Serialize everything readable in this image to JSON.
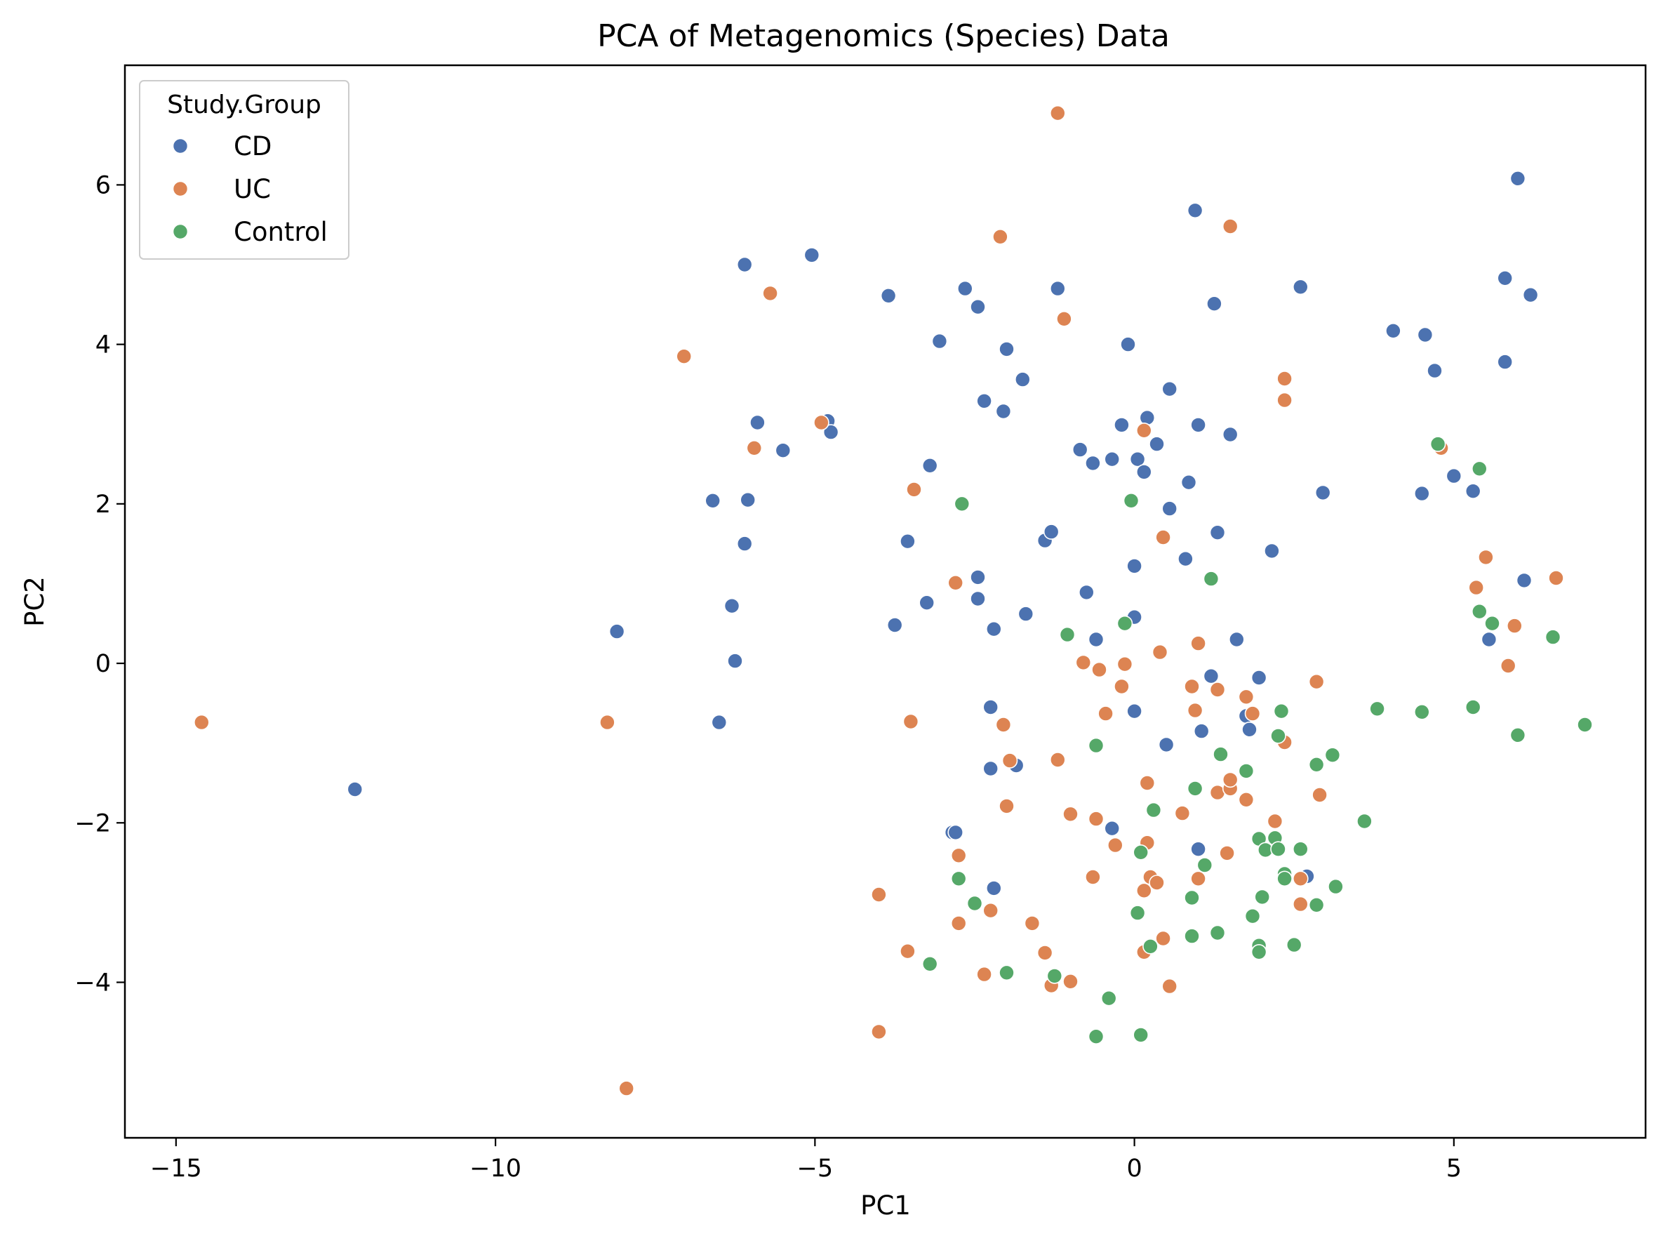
{
  "chart_data": {
    "type": "scatter",
    "title": "PCA of Metagenomics (Species) Data",
    "xlabel": "PC1",
    "ylabel": "PC2",
    "xlim": [
      -15.8,
      8.0
    ],
    "ylim": [
      -5.95,
      7.5
    ],
    "xticks": [
      -15,
      -10,
      -5,
      0,
      5
    ],
    "yticks": [
      -4,
      -2,
      0,
      2,
      4,
      6
    ],
    "grid": false,
    "legend": {
      "title": "Study.Group",
      "position": "top-left"
    },
    "series": [
      {
        "name": "CD",
        "color": "#4c72b0",
        "points": [
          [
            -12.2,
            -1.58
          ],
          [
            -8.1,
            0.4
          ],
          [
            -6.6,
            2.04
          ],
          [
            -6.5,
            -0.74
          ],
          [
            -6.3,
            0.72
          ],
          [
            -6.25,
            0.03
          ],
          [
            -6.1,
            5.0
          ],
          [
            -6.1,
            1.5
          ],
          [
            -6.05,
            2.05
          ],
          [
            -5.9,
            3.02
          ],
          [
            -5.5,
            2.67
          ],
          [
            -5.05,
            5.12
          ],
          [
            -4.8,
            3.04
          ],
          [
            -4.75,
            2.9
          ],
          [
            -3.85,
            4.61
          ],
          [
            -3.75,
            0.48
          ],
          [
            -3.55,
            1.53
          ],
          [
            -3.25,
            0.76
          ],
          [
            -3.2,
            2.48
          ],
          [
            -3.05,
            4.04
          ],
          [
            -2.85,
            -2.12
          ],
          [
            -2.8,
            -2.12
          ],
          [
            -2.65,
            4.7
          ],
          [
            -2.45,
            4.47
          ],
          [
            -2.45,
            1.08
          ],
          [
            -2.45,
            0.81
          ],
          [
            -2.35,
            3.29
          ],
          [
            -2.25,
            -0.55
          ],
          [
            -2.25,
            -1.32
          ],
          [
            -2.2,
            -2.82
          ],
          [
            -2.2,
            0.43
          ],
          [
            -2.05,
            3.16
          ],
          [
            -2.0,
            3.94
          ],
          [
            -1.85,
            -1.28
          ],
          [
            -1.75,
            3.56
          ],
          [
            -1.7,
            0.62
          ],
          [
            -1.4,
            1.54
          ],
          [
            -1.3,
            1.65
          ],
          [
            -1.2,
            4.7
          ],
          [
            -0.85,
            2.68
          ],
          [
            -0.75,
            0.89
          ],
          [
            -0.65,
            2.51
          ],
          [
            -0.6,
            0.3
          ],
          [
            -0.35,
            2.56
          ],
          [
            -0.35,
            -2.07
          ],
          [
            -0.2,
            2.99
          ],
          [
            -0.1,
            4.0
          ],
          [
            0.0,
            1.22
          ],
          [
            0.0,
            0.58
          ],
          [
            0.0,
            -0.6
          ],
          [
            0.05,
            2.56
          ],
          [
            0.15,
            2.4
          ],
          [
            0.2,
            3.08
          ],
          [
            0.35,
            2.75
          ],
          [
            0.5,
            -1.02
          ],
          [
            0.55,
            3.44
          ],
          [
            0.55,
            1.94
          ],
          [
            0.8,
            1.31
          ],
          [
            0.85,
            2.27
          ],
          [
            0.95,
            5.68
          ],
          [
            1.0,
            2.99
          ],
          [
            1.0,
            -2.33
          ],
          [
            1.05,
            -0.85
          ],
          [
            1.2,
            -0.16
          ],
          [
            1.25,
            4.51
          ],
          [
            1.3,
            1.64
          ],
          [
            1.5,
            2.87
          ],
          [
            1.6,
            0.3
          ],
          [
            1.75,
            -0.66
          ],
          [
            1.8,
            -0.83
          ],
          [
            1.95,
            -0.18
          ],
          [
            2.15,
            1.41
          ],
          [
            2.6,
            4.72
          ],
          [
            2.7,
            -2.67
          ],
          [
            2.95,
            2.14
          ],
          [
            4.05,
            4.17
          ],
          [
            4.5,
            2.13
          ],
          [
            4.55,
            4.12
          ],
          [
            4.7,
            3.67
          ],
          [
            5.0,
            2.35
          ],
          [
            5.3,
            2.16
          ],
          [
            5.55,
            0.3
          ],
          [
            5.8,
            4.83
          ],
          [
            5.8,
            3.78
          ],
          [
            6.0,
            6.08
          ],
          [
            6.1,
            1.04
          ],
          [
            6.2,
            4.62
          ]
        ]
      },
      {
        "name": "UC",
        "color": "#dd8452",
        "points": [
          [
            -14.6,
            -0.74
          ],
          [
            -8.25,
            -0.74
          ],
          [
            -7.95,
            -5.33
          ],
          [
            -7.05,
            3.85
          ],
          [
            -5.95,
            2.7
          ],
          [
            -5.7,
            4.64
          ],
          [
            -4.9,
            3.02
          ],
          [
            -4.0,
            -2.9
          ],
          [
            -4.0,
            -4.62
          ],
          [
            -3.5,
            -0.73
          ],
          [
            -3.45,
            2.18
          ],
          [
            -3.55,
            -3.61
          ],
          [
            -2.8,
            1.01
          ],
          [
            -2.75,
            -2.41
          ],
          [
            -2.75,
            -3.26
          ],
          [
            -2.25,
            -3.1
          ],
          [
            -2.1,
            5.35
          ],
          [
            -2.05,
            -0.77
          ],
          [
            -2.0,
            -1.79
          ],
          [
            -1.95,
            -1.22
          ],
          [
            -2.35,
            -3.9
          ],
          [
            -1.6,
            -3.26
          ],
          [
            -1.4,
            -3.63
          ],
          [
            -1.3,
            -4.04
          ],
          [
            -1.2,
            -1.21
          ],
          [
            -1.2,
            6.9
          ],
          [
            -1.1,
            4.32
          ],
          [
            -1.0,
            -1.89
          ],
          [
            -1.0,
            -3.99
          ],
          [
            -0.8,
            0.01
          ],
          [
            -0.65,
            -2.68
          ],
          [
            -0.6,
            -1.95
          ],
          [
            -0.55,
            -0.08
          ],
          [
            -0.45,
            -0.63
          ],
          [
            -0.3,
            -2.28
          ],
          [
            -0.2,
            -0.29
          ],
          [
            -0.15,
            -0.01
          ],
          [
            0.15,
            2.92
          ],
          [
            0.15,
            -2.85
          ],
          [
            0.15,
            -3.62
          ],
          [
            0.2,
            -2.25
          ],
          [
            0.2,
            -1.5
          ],
          [
            0.25,
            -2.68
          ],
          [
            0.35,
            -2.75
          ],
          [
            0.4,
            0.14
          ],
          [
            0.45,
            1.58
          ],
          [
            0.45,
            -3.45
          ],
          [
            0.55,
            -4.05
          ],
          [
            0.75,
            -1.88
          ],
          [
            0.9,
            -0.29
          ],
          [
            0.95,
            -0.59
          ],
          [
            1.0,
            0.25
          ],
          [
            1.0,
            -2.7
          ],
          [
            1.3,
            -1.62
          ],
          [
            1.3,
            -0.33
          ],
          [
            1.45,
            -2.38
          ],
          [
            1.5,
            -1.57
          ],
          [
            1.5,
            -1.46
          ],
          [
            1.75,
            -1.71
          ],
          [
            1.75,
            -0.42
          ],
          [
            1.85,
            -0.63
          ],
          [
            2.2,
            -1.98
          ],
          [
            2.35,
            3.57
          ],
          [
            2.35,
            3.3
          ],
          [
            2.35,
            -0.99
          ],
          [
            2.6,
            -3.02
          ],
          [
            2.6,
            -2.7
          ],
          [
            2.85,
            -0.23
          ],
          [
            2.9,
            -1.65
          ],
          [
            4.8,
            2.7
          ],
          [
            5.35,
            0.95
          ],
          [
            5.5,
            1.33
          ],
          [
            5.85,
            -0.03
          ],
          [
            5.95,
            0.47
          ],
          [
            6.6,
            1.07
          ],
          [
            1.5,
            5.48
          ]
        ]
      },
      {
        "name": "Control",
        "color": "#55a868",
        "points": [
          [
            -3.2,
            -3.77
          ],
          [
            -2.7,
            2.0
          ],
          [
            -2.75,
            -2.7
          ],
          [
            -2.5,
            -3.01
          ],
          [
            -2.0,
            -3.88
          ],
          [
            -1.25,
            -3.92
          ],
          [
            -1.05,
            0.36
          ],
          [
            -0.6,
            -1.03
          ],
          [
            -0.6,
            -4.68
          ],
          [
            -0.4,
            -4.2
          ],
          [
            -0.15,
            0.5
          ],
          [
            -0.05,
            2.04
          ],
          [
            0.05,
            -3.13
          ],
          [
            0.1,
            -2.37
          ],
          [
            0.1,
            -4.66
          ],
          [
            0.25,
            -3.55
          ],
          [
            0.3,
            -1.84
          ],
          [
            0.9,
            -2.94
          ],
          [
            0.9,
            -3.42
          ],
          [
            0.95,
            -1.57
          ],
          [
            1.1,
            -2.53
          ],
          [
            1.2,
            1.06
          ],
          [
            1.3,
            -3.38
          ],
          [
            1.35,
            -1.14
          ],
          [
            1.75,
            -1.35
          ],
          [
            1.85,
            -3.17
          ],
          [
            1.95,
            -2.2
          ],
          [
            1.95,
            -3.54
          ],
          [
            1.95,
            -3.62
          ],
          [
            2.0,
            -2.93
          ],
          [
            2.05,
            -2.34
          ],
          [
            2.2,
            -2.19
          ],
          [
            2.25,
            -2.33
          ],
          [
            2.25,
            -0.91
          ],
          [
            2.3,
            -0.6
          ],
          [
            2.35,
            -2.64
          ],
          [
            2.35,
            -2.7
          ],
          [
            2.5,
            -3.53
          ],
          [
            2.6,
            -2.33
          ],
          [
            2.85,
            -1.27
          ],
          [
            2.85,
            -3.03
          ],
          [
            3.1,
            -1.15
          ],
          [
            3.15,
            -2.8
          ],
          [
            3.6,
            -1.98
          ],
          [
            3.8,
            -0.57
          ],
          [
            4.5,
            -0.61
          ],
          [
            4.75,
            2.75
          ],
          [
            5.3,
            -0.55
          ],
          [
            5.4,
            2.44
          ],
          [
            5.4,
            0.65
          ],
          [
            5.6,
            0.5
          ],
          [
            6.0,
            -0.9
          ],
          [
            6.55,
            0.33
          ],
          [
            7.05,
            -0.77
          ]
        ]
      }
    ]
  }
}
